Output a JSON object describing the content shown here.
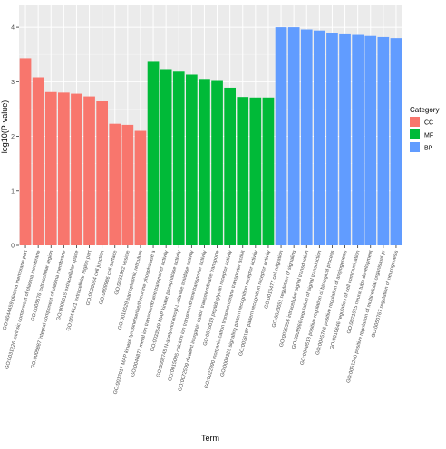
{
  "chart_data": {
    "type": "bar",
    "xlabel": "Term",
    "ylabel": "log10(P-value)",
    "ylim": [
      0,
      4.4
    ],
    "yticks": [
      0,
      1,
      2,
      3,
      4
    ],
    "grid": true,
    "legend": {
      "title": "Category",
      "position": "right",
      "entries": [
        {
          "name": "CC",
          "color": "#F8766D"
        },
        {
          "name": "MF",
          "color": "#00BA38"
        },
        {
          "name": "BP",
          "color": "#619CFF"
        }
      ]
    },
    "categories": [
      "GO:0044459 plasma membrane part",
      "GO:0031226 intrinsic component of plasma membrane",
      "GO:0005576 extracellular region",
      "GO:0005887 integral component of plasma membrane",
      "GO:0005615 extracellular space",
      "GO:0044421 extracellular region part",
      "GO:0030054 cell junction",
      "GO:0009986 cell surface",
      "GO:0031982 vesicle",
      "GO:0016529 sarcoplasmic reticulum",
      "GO:0017017 MAP kinase tyrosine/serine/threonine phosphatase a",
      "GO:0046873 metal ion transmembrane transporter activity",
      "GO:0033549 MAP kinase phosphatase activity",
      "GO:0008745 N-acetylmuramoyl-L-alanine amidase activity",
      "GO:0015085 calcium ion transmembrane transporter activity",
      "GO:0072509 divalent inorganic cation transmembrane transporte",
      "GO:0016019 peptidoglycan receptor activity",
      "GO:0022890 inorganic cation transmembrane transporter activit",
      "GO:0008329 signaling pattern recognition receptor activity",
      "GO:0038187 pattern recognition receptor activity",
      "GO:0016477 cell migration",
      "GO:0023051 regulation of signaling",
      "GO:0035556 intracellular signal transduction",
      "GO:0009966 regulation of signal transduction",
      "GO:0048518 positive regulation of biological process",
      "GO:0045766 positive regulation of angiogenesis",
      "GO:0010646 regulation of cell communication",
      "GO:0021915 neural tube development",
      "GO:0051240 positive regulation of multicellular organismal pr",
      "GO:0050767 regulation of neurogenesis"
    ],
    "values": [
      3.43,
      3.08,
      2.81,
      2.8,
      2.78,
      2.73,
      2.64,
      2.23,
      2.21,
      2.1,
      3.38,
      3.23,
      3.2,
      3.13,
      3.05,
      3.03,
      2.89,
      2.72,
      2.71,
      2.71,
      4.0,
      4.0,
      3.96,
      3.94,
      3.9,
      3.87,
      3.86,
      3.84,
      3.82,
      3.8
    ],
    "category_groups": [
      "CC",
      "CC",
      "CC",
      "CC",
      "CC",
      "CC",
      "CC",
      "CC",
      "CC",
      "CC",
      "MF",
      "MF",
      "MF",
      "MF",
      "MF",
      "MF",
      "MF",
      "MF",
      "MF",
      "MF",
      "BP",
      "BP",
      "BP",
      "BP",
      "BP",
      "BP",
      "BP",
      "BP",
      "BP",
      "BP"
    ]
  }
}
